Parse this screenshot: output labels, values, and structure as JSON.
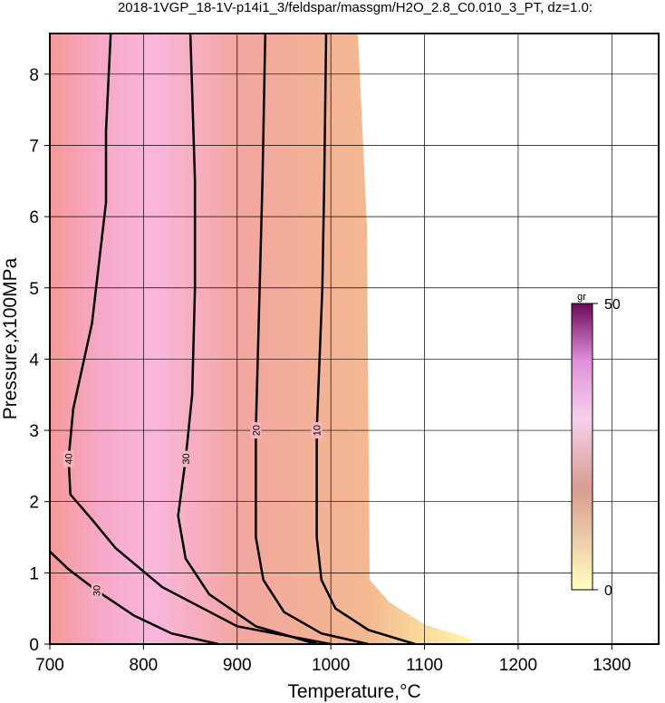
{
  "chart_data": {
    "type": "contour",
    "title": "2018-1VGP_18-1V-p14i1_3/feldspar/massgm/H2O_2.8_C0.010_3_PT, dz=1.0:",
    "x_label": "Temperature,°C",
    "y_label": "Pressure,x100MPa",
    "xlim": [
      700,
      1350
    ],
    "ylim": [
      0,
      8.57
    ],
    "xticks": [
      700,
      800,
      900,
      1000,
      1100,
      1200,
      1300
    ],
    "yticks": [
      0,
      1,
      2,
      3,
      4,
      5,
      6,
      7,
      8
    ],
    "grid": true,
    "contours": [
      {
        "level": 10,
        "x": [
          1090,
          1040,
          1005,
          990,
          985,
          985,
          988,
          991,
          993,
          995
        ],
        "y": [
          0,
          0.2,
          0.5,
          0.9,
          1.5,
          3,
          4,
          5,
          6.5,
          8.57
        ]
      },
      {
        "level": 20,
        "x": [
          1040,
          990,
          950,
          928,
          920,
          920,
          922,
          924,
          927,
          930
        ],
        "y": [
          0,
          0.15,
          0.45,
          0.9,
          1.5,
          3,
          4,
          5,
          6.5,
          8.57
        ]
      },
      {
        "level": 30,
        "x": [
          985,
          920,
          870,
          845,
          837,
          845,
          852,
          855,
          855,
          850
        ],
        "y": [
          0,
          0.25,
          0.7,
          1.2,
          1.8,
          2.6,
          3.5,
          5,
          6.5,
          8.57
        ]
      },
      {
        "level": 40,
        "x": [
          1000,
          900,
          820,
          770,
          745,
          722,
          720,
          725,
          745,
          760,
          760,
          765
        ],
        "y": [
          0,
          0.25,
          0.8,
          1.35,
          1.75,
          2.1,
          2.6,
          3.3,
          4.5,
          6.2,
          7.2,
          8.57
        ]
      },
      {
        "level": 30,
        "x": [
          880,
          830,
          790,
          750,
          720,
          700
        ],
        "y": [
          0,
          0.15,
          0.4,
          0.75,
          1.05,
          1.3
        ]
      }
    ],
    "colorbar": {
      "label": "gr",
      "lim": [
        0,
        50
      ],
      "ticks": [
        0,
        50
      ]
    }
  }
}
